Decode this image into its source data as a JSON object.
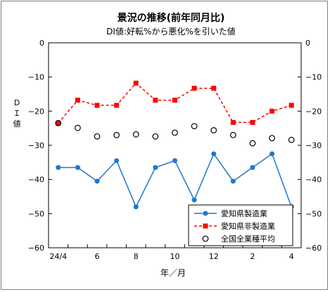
{
  "chart_data": {
    "type": "line",
    "title": "景況の推移(前年同月比)",
    "subtitle": "DI値:好転%から悪化%を引いた値",
    "xlabel": "年／月",
    "ylabel": "ＤＩ値",
    "ylim": [
      -60,
      0
    ],
    "yticks": [
      0,
      -10,
      -20,
      -30,
      -40,
      -50,
      -60
    ],
    "ytick_labels": [
      "0",
      "−10",
      "−20",
      "−30",
      "−40",
      "−50",
      "−60"
    ],
    "categories": [
      "24/4",
      "5",
      "6",
      "7",
      "8",
      "9",
      "10",
      "11",
      "12",
      "1",
      "2",
      "3",
      "4"
    ],
    "x_tick_labels": [
      "24/4",
      "",
      "6",
      "",
      "8",
      "",
      "10",
      "",
      "12",
      "",
      "2",
      "",
      "4"
    ],
    "grid": false,
    "legend_position": "bottom-right",
    "series": [
      {
        "name": "愛知県製造業",
        "color": "#1f77d0",
        "style": "solid",
        "marker": "circle",
        "values": [
          -36.5,
          -36.5,
          -40.5,
          -34.5,
          -48.0,
          -36.5,
          -34.5,
          -46.0,
          -32.5,
          -40.5,
          -36.5,
          -32.5,
          -48.0
        ]
      },
      {
        "name": "愛知県非製造業",
        "color": "#ff0000",
        "style": "dashed",
        "marker": "square",
        "values": [
          -23.5,
          -16.8,
          -18.3,
          -18.3,
          -11.8,
          -16.8,
          -16.8,
          -13.3,
          -13.3,
          -23.3,
          -23.3,
          -20.0,
          -18.3
        ]
      },
      {
        "name": "全国全業種平均",
        "color": "#000000",
        "style": "none",
        "marker": "open-circle",
        "values": [
          -23.5,
          -24.9,
          -27.4,
          -27.0,
          -26.8,
          -27.4,
          -26.3,
          -24.4,
          -25.6,
          -27.0,
          -29.4,
          -27.9,
          -28.4
        ]
      }
    ]
  }
}
